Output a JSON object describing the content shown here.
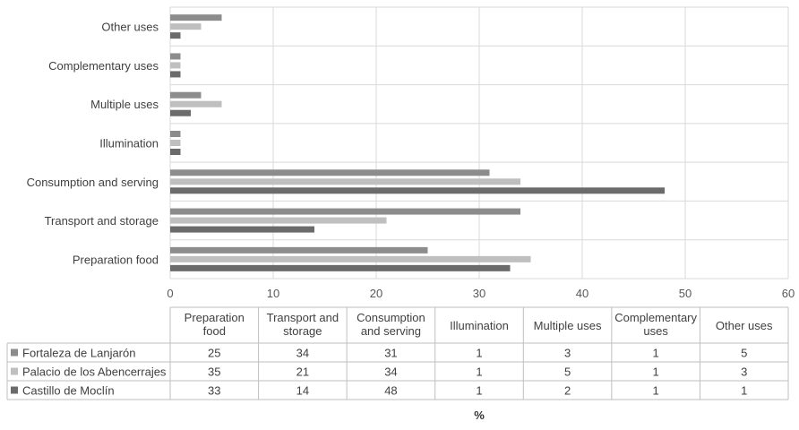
{
  "chart_data": {
    "type": "bar",
    "orientation": "horizontal",
    "categories": [
      "Preparation food",
      "Transport and storage",
      "Consumption and serving",
      "Illumination",
      "Multiple uses",
      "Complementary uses",
      "Other uses"
    ],
    "table_headers": [
      "Preparation food",
      "Transport and storage",
      "Consumption and serving",
      "Illumination",
      "Multiple uses",
      "Complementary uses",
      "Other uses"
    ],
    "series": [
      {
        "name": "Fortaleza de Lanjarón",
        "values": [
          25,
          34,
          31,
          1,
          3,
          1,
          5
        ],
        "color": "#8c8c8c"
      },
      {
        "name": "Palacio de los Abencerrajes",
        "values": [
          35,
          21,
          34,
          1,
          5,
          1,
          3
        ],
        "color": "#bfbfbf"
      },
      {
        "name": "Castillo de Moclín",
        "values": [
          33,
          14,
          48,
          1,
          2,
          1,
          1
        ],
        "color": "#6b6b6b"
      }
    ],
    "xlim": [
      0,
      60
    ],
    "xticks": [
      0,
      10,
      20,
      30,
      40,
      50,
      60
    ],
    "xlabel": "%",
    "ylabel": "",
    "title": "",
    "grid": true,
    "legend": "data-table-below"
  }
}
